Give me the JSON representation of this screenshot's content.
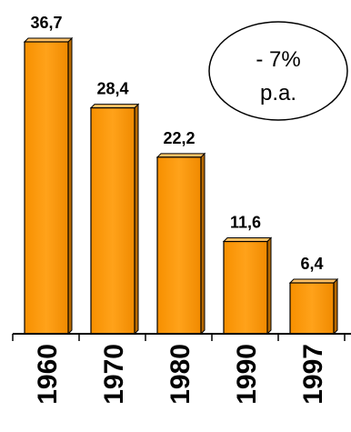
{
  "chart_data": {
    "type": "bar",
    "categories": [
      "1960",
      "1970",
      "1980",
      "1990",
      "1997"
    ],
    "values": [
      36.7,
      28.4,
      22.2,
      11.6,
      6.4
    ],
    "value_labels": [
      "36,7",
      "28,4",
      "22,2",
      "11,6",
      "6,4"
    ],
    "ylim": [
      0,
      40
    ],
    "grid": false,
    "bar_color": "#FF9900",
    "annotation": {
      "line1": "- 7%",
      "line2": "p.a."
    }
  }
}
